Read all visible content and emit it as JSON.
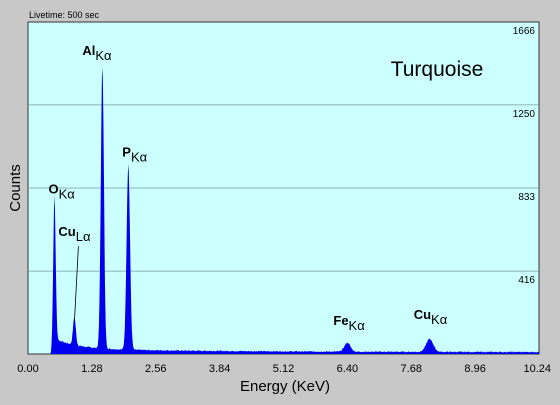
{
  "header": {
    "livetime": "Livetime: 500 sec"
  },
  "colors": {
    "background": "#c8c8c8",
    "plot_bg": "#ccffff",
    "signal": "#0000ee",
    "grid": "#7a9a9a"
  },
  "chart_data": {
    "type": "area",
    "title": "Turquoise",
    "xlabel": "Energy (KeV)",
    "ylabel": "Counts",
    "xlim": [
      0,
      10.24
    ],
    "ylim": [
      0,
      1666
    ],
    "x_ticks": [
      0,
      1.28,
      2.56,
      3.84,
      5.12,
      6.4,
      7.68,
      8.96,
      10.24
    ],
    "x_tick_labels": [
      "0.00",
      "1.28",
      "2.56",
      "3.84",
      "5.12",
      "6.40",
      "7.68",
      "8.96",
      "10.24"
    ],
    "y_ticks": [
      416,
      833,
      1250,
      1666
    ],
    "y_tick_labels": [
      "416",
      "833",
      "1250",
      "1666"
    ],
    "grid": "horizontal",
    "peaks": [
      {
        "element": "O",
        "line": "Kα",
        "x": 0.53,
        "y": 730
      },
      {
        "element": "Cu",
        "line": "Lα",
        "x": 0.93,
        "y": 140
      },
      {
        "element": "Al",
        "line": "Kα",
        "x": 1.49,
        "y": 1420
      },
      {
        "element": "P",
        "line": "Kα",
        "x": 2.01,
        "y": 930
      },
      {
        "element": "Fe",
        "line": "Kα",
        "x": 6.4,
        "y": 45
      },
      {
        "element": "Cu",
        "line": "Kα",
        "x": 8.05,
        "y": 65
      }
    ]
  }
}
